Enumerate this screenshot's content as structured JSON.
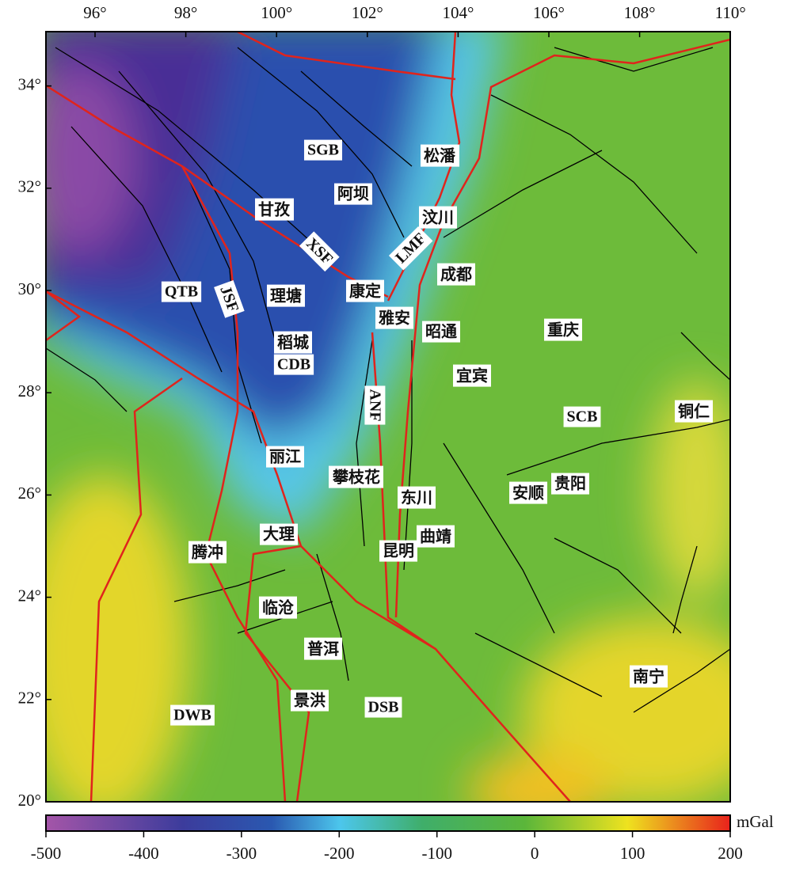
{
  "map": {
    "xticks": [
      {
        "value": 96,
        "label": "96°"
      },
      {
        "value": 98,
        "label": "98°"
      },
      {
        "value": 100,
        "label": "100°"
      },
      {
        "value": 102,
        "label": "102°"
      },
      {
        "value": 104,
        "label": "104°"
      },
      {
        "value": 106,
        "label": "106°"
      },
      {
        "value": 108,
        "label": "108°"
      },
      {
        "value": 110,
        "label": "110°"
      }
    ],
    "yticks": [
      {
        "value": 34,
        "label": "34°"
      },
      {
        "value": 32,
        "label": "32°"
      },
      {
        "value": 30,
        "label": "30°"
      },
      {
        "value": 28,
        "label": "28°"
      },
      {
        "value": 26,
        "label": "26°"
      },
      {
        "value": 24,
        "label": "24°"
      },
      {
        "value": 22,
        "label": "22°"
      },
      {
        "value": 20,
        "label": "20°"
      }
    ],
    "labels": [
      "SGB",
      "松潘",
      "阿坝",
      "甘孜",
      "汶川",
      "XSF",
      "LMF",
      "成都",
      "QTB",
      "JSF",
      "理塘",
      "康定",
      "雅安",
      "昭通",
      "重庆",
      "稻城",
      "CDB",
      "宜宾",
      "ANF",
      "SCB",
      "铜仁",
      "丽江",
      "攀枝花",
      "贵阳",
      "安顺",
      "东川",
      "大理",
      "曲靖",
      "腾冲",
      "昆明",
      "临沧",
      "普洱",
      "南宁",
      "景洪",
      "DSB",
      "DWB"
    ],
    "colorbar": {
      "unit": "mGal",
      "ticks": [
        -500,
        -400,
        -300,
        -200,
        -100,
        0,
        100,
        200
      ]
    }
  }
}
